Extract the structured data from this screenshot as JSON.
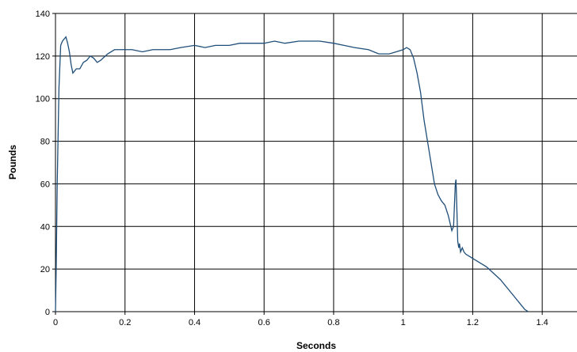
{
  "chart_data": {
    "type": "line",
    "title": "",
    "xlabel": "Seconds",
    "ylabel": "Pounds",
    "xlim": [
      0,
      1.5
    ],
    "ylim": [
      0,
      140
    ],
    "x_ticks": [
      0,
      0.2,
      0.4,
      0.6,
      0.8,
      1,
      1.2,
      1.4
    ],
    "x_tick_labels": [
      "0",
      "0.2",
      "0.4",
      "0.6",
      "0.8",
      "1",
      "1.2",
      "1.4"
    ],
    "y_ticks": [
      0,
      20,
      40,
      60,
      80,
      100,
      120,
      140
    ],
    "y_tick_labels": [
      "0",
      "20",
      "40",
      "60",
      "80",
      "100",
      "120",
      "140"
    ],
    "grid": true,
    "legend": "none",
    "line_color": "#1f4e79",
    "series": [
      {
        "x": [
          0,
          0.002,
          0.005,
          0.01,
          0.015,
          0.02,
          0.025,
          0.03,
          0.035,
          0.04,
          0.045,
          0.05,
          0.055,
          0.06,
          0.07,
          0.08,
          0.09,
          0.1,
          0.11,
          0.12,
          0.13,
          0.15,
          0.17,
          0.19,
          0.2,
          0.22,
          0.25,
          0.28,
          0.3,
          0.33,
          0.36,
          0.4,
          0.43,
          0.46,
          0.5,
          0.53,
          0.56,
          0.6,
          0.63,
          0.66,
          0.7,
          0.73,
          0.76,
          0.8,
          0.83,
          0.86,
          0.9,
          0.93,
          0.96,
          0.98,
          1.0,
          1.01,
          1.02,
          1.03,
          1.04,
          1.05,
          1.06,
          1.07,
          1.08,
          1.09,
          1.1,
          1.11,
          1.12,
          1.13,
          1.14,
          1.145,
          1.15,
          1.152,
          1.155,
          1.157,
          1.16,
          1.162,
          1.165,
          1.17,
          1.175,
          1.18,
          1.19,
          1.2,
          1.22,
          1.24,
          1.26,
          1.28,
          1.3,
          1.32,
          1.34,
          1.35,
          1.36
        ],
        "y": [
          0,
          20,
          60,
          105,
          125,
          127,
          128,
          129,
          126,
          122,
          116,
          112,
          113,
          114,
          114,
          117,
          118,
          120,
          119,
          117,
          118,
          121,
          123,
          123,
          123,
          123,
          122,
          123,
          123,
          123,
          124,
          125,
          124,
          125,
          125,
          126,
          126,
          126,
          127,
          126,
          127,
          127,
          127,
          126,
          125,
          124,
          123,
          121,
          121,
          122,
          123,
          124,
          123,
          119,
          112,
          103,
          90,
          80,
          70,
          60,
          55,
          52,
          50,
          45,
          38,
          40,
          60,
          62,
          45,
          33,
          30,
          32,
          28,
          30,
          28,
          27,
          26,
          25,
          23,
          21,
          18,
          15,
          11,
          7,
          3,
          1,
          0
        ]
      }
    ]
  }
}
